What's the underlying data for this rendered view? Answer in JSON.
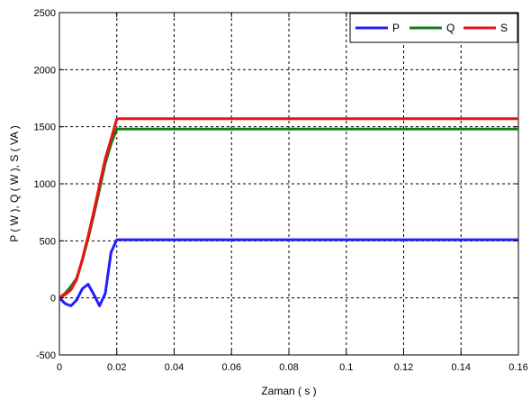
{
  "chart_data": {
    "type": "line",
    "title": "",
    "xlabel": "Zaman ( s )",
    "ylabel": "P ( W ), Q ( W ), S ( VA )",
    "xlim": [
      0,
      0.16
    ],
    "ylim": [
      -500,
      2500
    ],
    "xticks": [
      0,
      0.02,
      0.04,
      0.06,
      0.08,
      0.1,
      0.12,
      0.14,
      0.16
    ],
    "xtick_labels": [
      "0",
      "0.02",
      "0.04",
      "0.06",
      "0.08",
      "0.1",
      "0.12",
      "0.14",
      "0.16"
    ],
    "yticks": [
      -500,
      0,
      500,
      1000,
      1500,
      2000,
      2500
    ],
    "ytick_labels": [
      "-500",
      "0",
      "500",
      "1000",
      "1500",
      "2000",
      "2500"
    ],
    "grid": true,
    "legend_position": "top-right",
    "series": [
      {
        "name": "P",
        "color": "#1f1fff",
        "x": [
          0,
          0.002,
          0.004,
          0.006,
          0.008,
          0.01,
          0.012,
          0.014,
          0.016,
          0.018,
          0.02,
          0.16
        ],
        "y": [
          0,
          -50,
          -70,
          -20,
          80,
          120,
          30,
          -70,
          40,
          400,
          510,
          510
        ]
      },
      {
        "name": "Q",
        "color": "#1a7a1a",
        "x": [
          0,
          0.002,
          0.004,
          0.006,
          0.008,
          0.01,
          0.012,
          0.014,
          0.016,
          0.018,
          0.02,
          0.16
        ],
        "y": [
          0,
          40,
          100,
          170,
          330,
          520,
          730,
          950,
          1180,
          1350,
          1480,
          1480
        ]
      },
      {
        "name": "S",
        "color": "#ee1111",
        "x": [
          0,
          0.002,
          0.004,
          0.006,
          0.008,
          0.01,
          0.012,
          0.014,
          0.016,
          0.018,
          0.02,
          0.16
        ],
        "y": [
          0,
          30,
          70,
          160,
          340,
          540,
          760,
          990,
          1220,
          1390,
          1570,
          1570
        ]
      }
    ]
  }
}
